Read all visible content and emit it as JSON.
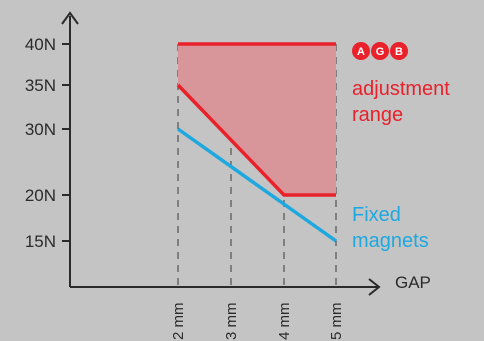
{
  "chart_data": {
    "type": "line",
    "title": "",
    "xlabel": "GAP",
    "ylabel": "",
    "x_ticks": [
      {
        "value": 2,
        "label": "2 mm"
      },
      {
        "value": 3,
        "label": "3 mm"
      },
      {
        "value": 4,
        "label": "4 mm"
      },
      {
        "value": 5,
        "label": "5 mm"
      }
    ],
    "y_ticks": [
      {
        "value": 15,
        "label": "15N"
      },
      {
        "value": 20,
        "label": "20N"
      },
      {
        "value": 30,
        "label": "30N"
      },
      {
        "value": 35,
        "label": "35N"
      },
      {
        "value": 40,
        "label": "40N"
      }
    ],
    "series": [
      {
        "name": "adjustment range",
        "role": "upper",
        "color": "#e8212b",
        "points": [
          [
            2,
            40
          ],
          [
            5,
            40
          ]
        ]
      },
      {
        "name": "adjustment range",
        "role": "lower",
        "color": "#e8212b",
        "points": [
          [
            2,
            35
          ],
          [
            4,
            20
          ],
          [
            5,
            20
          ]
        ]
      },
      {
        "name": "Fixed magnets",
        "color": "#1ea8e0",
        "points": [
          [
            2,
            30
          ],
          [
            5,
            15
          ]
        ]
      }
    ],
    "range_fill_color": "#d9969a",
    "legend": {
      "brand": "AGB",
      "brand_color": "#e8212b",
      "red_lines": [
        "adjustment range"
      ],
      "blue_lines": [
        "Fixed",
        "magnets"
      ]
    }
  }
}
